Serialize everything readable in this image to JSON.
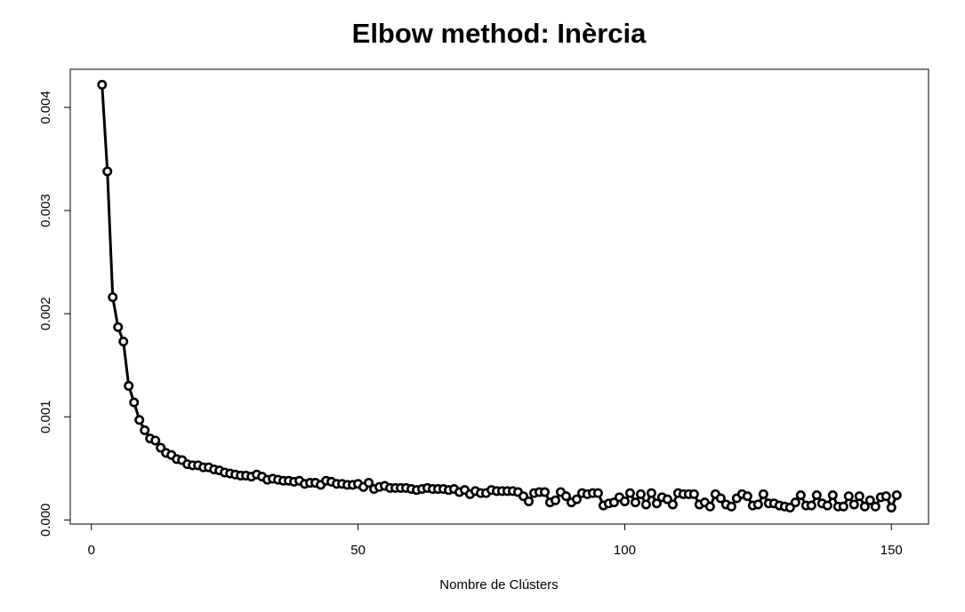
{
  "chart_data": {
    "type": "line",
    "title": "Elbow method: Inèrcia",
    "x_label": "Nombre de Clústers",
    "x": [
      2,
      3,
      4,
      5,
      6,
      7,
      8,
      9,
      10,
      11,
      12,
      13,
      14,
      15,
      16,
      17,
      18,
      19,
      20,
      21,
      22,
      23,
      24,
      25,
      26,
      27,
      28,
      29,
      30,
      31,
      32,
      33,
      34,
      35,
      36,
      37,
      38,
      39,
      40,
      41,
      42,
      43,
      44,
      45,
      46,
      47,
      48,
      49,
      50,
      51,
      52,
      53,
      54,
      55,
      56,
      57,
      58,
      59,
      60,
      61,
      62,
      63,
      64,
      65,
      66,
      67,
      68,
      69,
      70,
      71,
      72,
      73,
      74,
      75,
      76,
      77,
      78,
      79,
      80,
      81,
      82,
      83,
      84,
      85,
      86,
      87,
      88,
      89,
      90,
      91,
      92,
      93,
      94,
      95,
      96,
      97,
      98,
      99,
      100,
      101,
      102,
      103,
      104,
      105,
      106,
      107,
      108,
      109,
      110,
      111,
      112,
      113,
      114,
      115,
      116,
      117,
      118,
      119,
      120,
      121,
      122,
      123,
      124,
      125,
      126,
      127,
      128,
      129,
      130,
      131,
      132,
      133,
      134,
      135,
      136,
      137,
      138,
      139,
      140,
      141,
      142,
      143,
      144,
      145,
      146,
      147,
      148,
      149,
      150,
      151
    ],
    "series": [
      {
        "color": "#000000",
        "values": [
          0.00422,
          0.00338,
          0.00216,
          0.00187,
          0.00173,
          0.0013,
          0.00114,
          0.00097,
          0.00087,
          0.00079,
          0.00077,
          0.0007,
          0.00065,
          0.00063,
          0.00059,
          0.00058,
          0.00054,
          0.00053,
          0.00053,
          0.00051,
          0.00051,
          0.00049,
          0.00048,
          0.00046,
          0.00045,
          0.00044,
          0.00043,
          0.00043,
          0.00042,
          0.00044,
          0.00042,
          0.00039,
          0.0004,
          0.00039,
          0.00038,
          0.00038,
          0.00037,
          0.00038,
          0.00035,
          0.00036,
          0.00036,
          0.00034,
          0.00038,
          0.00037,
          0.00035,
          0.00035,
          0.00034,
          0.00034,
          0.00035,
          0.00032,
          0.00036,
          0.0003,
          0.00032,
          0.00033,
          0.00031,
          0.00031,
          0.00031,
          0.00031,
          0.0003,
          0.00029,
          0.0003,
          0.00031,
          0.0003,
          0.0003,
          0.0003,
          0.00029,
          0.0003,
          0.00027,
          0.00029,
          0.00025,
          0.00028,
          0.00026,
          0.00026,
          0.00029,
          0.00028,
          0.00028,
          0.00028,
          0.00028,
          0.00027,
          0.00023,
          0.00018,
          0.00026,
          0.00027,
          0.00027,
          0.00017,
          0.00019,
          0.00027,
          0.00023,
          0.00017,
          0.0002,
          0.00026,
          0.00025,
          0.00026,
          0.00026,
          0.00014,
          0.00016,
          0.00017,
          0.00022,
          0.00018,
          0.00026,
          0.00017,
          0.00025,
          0.00015,
          0.00026,
          0.00016,
          0.00022,
          0.0002,
          0.00015,
          0.00026,
          0.00025,
          0.00025,
          0.00025,
          0.00015,
          0.00017,
          0.00013,
          0.00025,
          0.00021,
          0.00015,
          0.00013,
          0.00021,
          0.00025,
          0.00023,
          0.00014,
          0.00015,
          0.00025,
          0.00016,
          0.00016,
          0.00014,
          0.00013,
          0.00012,
          0.00017,
          0.00024,
          0.00014,
          0.00014,
          0.00024,
          0.00016,
          0.00014,
          0.00024,
          0.00013,
          0.00013,
          0.00023,
          0.00015,
          0.00023,
          0.00013,
          0.00019,
          0.00013,
          0.00022,
          0.00023,
          0.00012,
          0.00024
        ]
      }
    ],
    "xlim": [
      -3.96,
      156.96
    ],
    "xticks": [
      0,
      50,
      100,
      150
    ],
    "ylim": [
      -4e-05,
      0.00437
    ],
    "yticks": [
      {
        "value": 0,
        "label": "0.000"
      },
      {
        "value": 0.001,
        "label": "0.001"
      },
      {
        "value": 0.002,
        "label": "0.002"
      },
      {
        "value": 0.003,
        "label": "0.003"
      },
      {
        "value": 0.004,
        "label": "0.004"
      }
    ]
  }
}
